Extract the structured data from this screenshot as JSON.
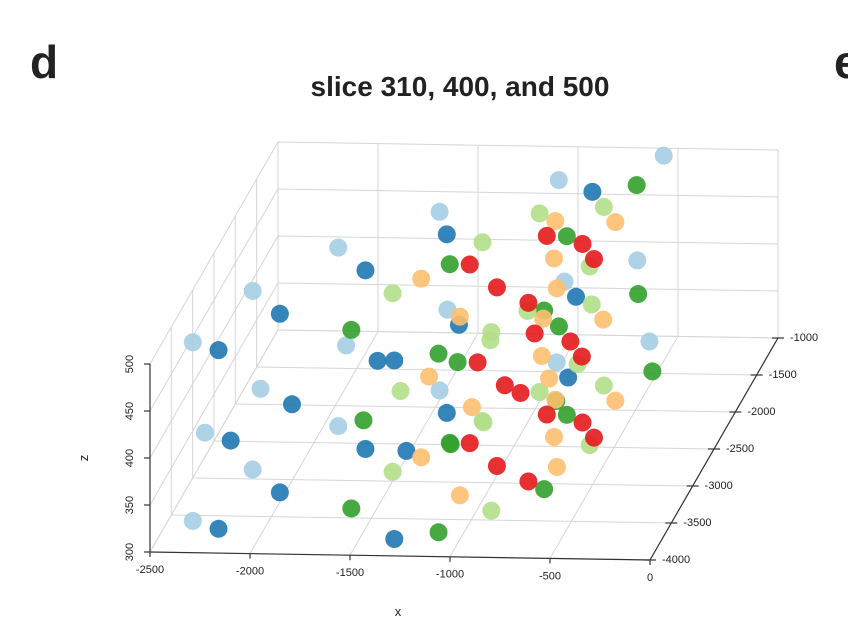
{
  "panel_label": "d",
  "next_panel_label": "e",
  "chart_data": {
    "type": "scatter3d",
    "title": "slice 310, 400, and 500",
    "x_label": "x",
    "z_label": "z",
    "xlim": [
      -2500,
      0
    ],
    "xticks": [
      -2500,
      -2000,
      -1500,
      -1000,
      -500,
      0
    ],
    "ylim": [
      -4000,
      -1000
    ],
    "yticks": [
      -4000,
      -3500,
      -3000,
      -2500,
      -2000,
      -1500,
      -1000
    ],
    "zlim": [
      300,
      500
    ],
    "zticks": [
      300,
      350,
      400,
      450,
      500
    ],
    "grid": true,
    "series": [
      {
        "color": "#a6cee3",
        "x": [
          -2350,
          -2200,
          -1900,
          -1500,
          -1000,
          -600,
          -2300,
          -2150,
          -1850,
          -1450,
          -950,
          -650,
          -2350,
          -2200,
          -1900,
          -1500,
          -1000,
          -550
        ],
        "y": [
          -3700,
          -3000,
          -2400,
          -1900,
          -1500,
          -1200,
          -3650,
          -3050,
          -2450,
          -1950,
          -1550,
          -1250,
          -3700,
          -3000,
          -2400,
          -1900,
          -1450,
          -1100
        ],
        "z": [
          310,
          310,
          310,
          310,
          310,
          310,
          400,
          400,
          400,
          400,
          400,
          400,
          500,
          500,
          500,
          500,
          500,
          500
        ]
      },
      {
        "color": "#1f78b4",
        "x": [
          -2200,
          -2000,
          -1700,
          -1400,
          -1300,
          -900,
          -2150,
          -1950,
          -1650,
          -1350,
          -1250,
          -850,
          -2200,
          -2000,
          -1700,
          -1400,
          -1300,
          -800
        ],
        "y": [
          -3800,
          -3300,
          -2700,
          -2200,
          -3900,
          -1700,
          -3750,
          -3250,
          -2650,
          -2150,
          -3850,
          -1750,
          -3800,
          -3300,
          -2700,
          -2200,
          -3900,
          -1600
        ],
        "z": [
          310,
          310,
          310,
          310,
          310,
          310,
          400,
          400,
          400,
          400,
          400,
          400,
          500,
          500,
          500,
          500,
          500,
          500
        ]
      },
      {
        "color": "#33a02c",
        "x": [
          -1600,
          -1300,
          -1100,
          -800,
          -700,
          -500,
          -1550,
          -1250,
          -1050,
          -850,
          -650,
          -550,
          -1600,
          -1300,
          -1100,
          -800,
          -700,
          -600
        ],
        "y": [
          -3500,
          -2600,
          -3800,
          -2200,
          -3200,
          -1600,
          -3450,
          -2650,
          -3750,
          -2150,
          -3150,
          -1700,
          -3500,
          -2600,
          -3800,
          -2200,
          -3200,
          -1500
        ],
        "z": [
          310,
          310,
          310,
          310,
          310,
          310,
          400,
          400,
          400,
          400,
          400,
          400,
          500,
          500,
          500,
          500,
          500,
          500
        ]
      },
      {
        "color": "#b2df8a",
        "x": [
          -1500,
          -1200,
          -900,
          -1000,
          -600,
          -700,
          -1450,
          -1150,
          -950,
          -1050,
          -650,
          -750,
          -1500,
          -1200,
          -900,
          -1000,
          -600,
          -700
        ],
        "y": [
          -3000,
          -2300,
          -3500,
          -1900,
          -2600,
          -1800,
          -3050,
          -2350,
          -3450,
          -1950,
          -2650,
          -1850,
          -3000,
          -2300,
          -3500,
          -1900,
          -2600,
          -1800
        ],
        "z": [
          310,
          310,
          310,
          310,
          310,
          310,
          400,
          400,
          400,
          400,
          400,
          400,
          500,
          500,
          500,
          500,
          500,
          500
        ]
      },
      {
        "color": "#fdbf6f",
        "x": [
          -1400,
          -1100,
          -800,
          -900,
          -600,
          -700,
          -1350,
          -1050,
          -850,
          -950,
          -650,
          -750,
          -1400,
          -1100,
          -800,
          -900,
          -600,
          -700
        ],
        "y": [
          -2800,
          -3300,
          -2500,
          -2000,
          -2000,
          -2900,
          -2850,
          -3250,
          -2550,
          -2050,
          -2050,
          -2850,
          -2800,
          -3300,
          -2500,
          -2000,
          -2000,
          -2900
        ],
        "z": [
          310,
          310,
          310,
          310,
          310,
          310,
          400,
          400,
          400,
          400,
          400,
          400,
          500,
          500,
          500,
          500,
          500,
          500
        ]
      },
      {
        "color": "#e31a1c",
        "x": [
          -1200,
          -1000,
          -800,
          -700,
          -600,
          -900,
          -1150,
          -950,
          -850,
          -750,
          -650,
          -950,
          -1200,
          -1000,
          -800,
          -700,
          -600,
          -900
        ],
        "y": [
          -2600,
          -2900,
          -3100,
          -2300,
          -2500,
          -2200,
          -2650,
          -2950,
          -3050,
          -2350,
          -2550,
          -2250,
          -2600,
          -2900,
          -3100,
          -2300,
          -2500,
          -2200
        ],
        "z": [
          310,
          310,
          310,
          310,
          310,
          310,
          400,
          400,
          400,
          400,
          400,
          400,
          500,
          500,
          500,
          500,
          500,
          500
        ]
      }
    ]
  }
}
